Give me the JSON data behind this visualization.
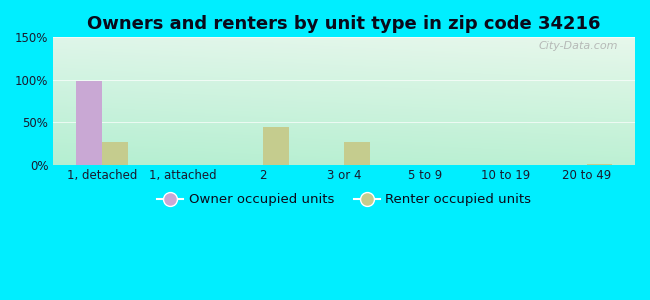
{
  "title": "Owners and renters by unit type in zip code 34216",
  "categories": [
    "1, detached",
    "1, attached",
    "2",
    "3 or 4",
    "5 to 9",
    "10 to 19",
    "20 to 49"
  ],
  "owner_values": [
    98,
    0,
    0,
    0,
    0,
    0,
    0
  ],
  "renter_values": [
    27,
    0,
    44,
    27,
    0,
    0,
    1
  ],
  "owner_color": "#c9a8d4",
  "renter_color": "#c5cc8e",
  "background_outer": "#00eeff",
  "title_fontsize": 13,
  "tick_fontsize": 8.5,
  "legend_fontsize": 9.5,
  "ylim": [
    0,
    150
  ],
  "yticks": [
    0,
    50,
    100,
    150
  ],
  "ytick_labels": [
    "0%",
    "50%",
    "100%",
    "150%"
  ],
  "bar_width": 0.32,
  "watermark": "City-Data.com"
}
